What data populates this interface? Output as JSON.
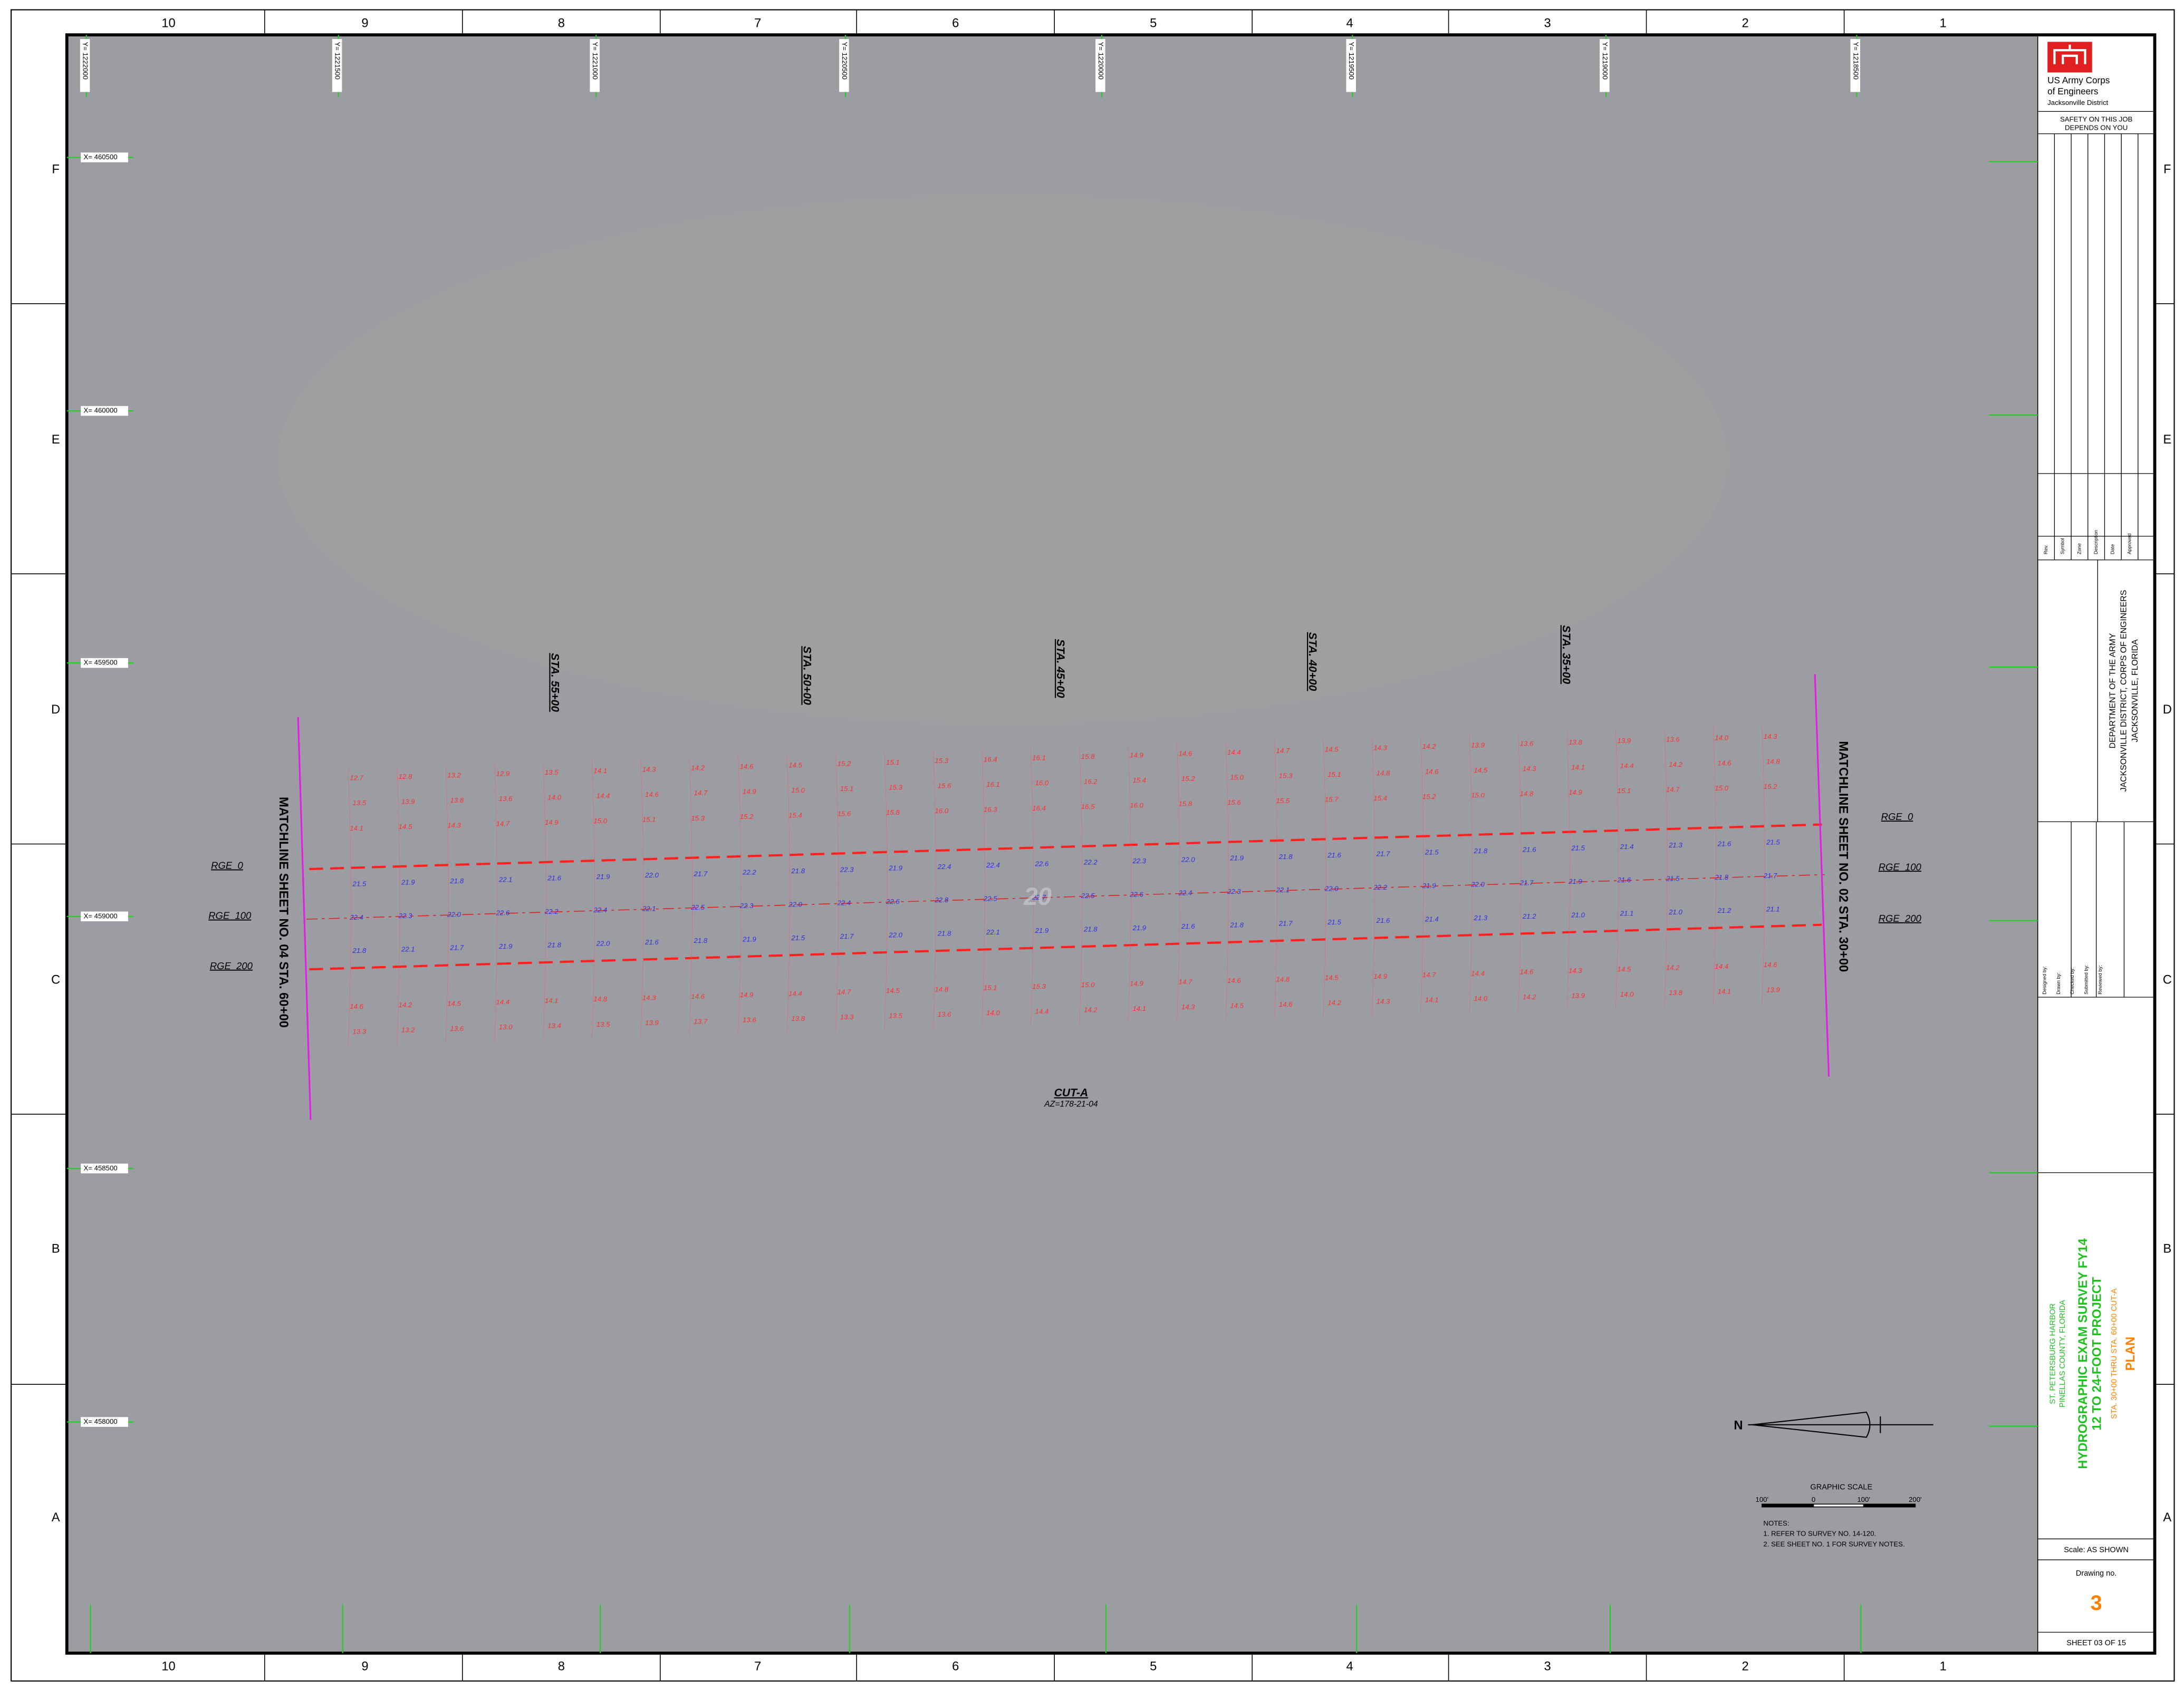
{
  "border": {
    "columns": [
      "10",
      "9",
      "8",
      "7",
      "6",
      "5",
      "4",
      "3",
      "2",
      "1"
    ],
    "rows": [
      "F",
      "E",
      "D",
      "C",
      "B",
      "A"
    ]
  },
  "grid": {
    "y_labels": [
      "Y= 1222000",
      "Y= 1221500",
      "Y= 1221000",
      "Y= 1220500",
      "Y= 1220000",
      "Y= 1219500",
      "Y= 1219000",
      "Y= 1218500"
    ],
    "x_labels": [
      "X= 460500",
      "X= 460000",
      "X= 459500",
      "X= 459000",
      "X= 458500",
      "X= 458000"
    ]
  },
  "map": {
    "stations": [
      "STA. 55+00",
      "STA. 50+00",
      "STA. 45+00",
      "STA. 40+00",
      "STA. 35+00"
    ],
    "matchline_left": "MATCHLINE SHEET NO. 04 STA. 60+00",
    "matchline_right": "MATCHLINE SHEET NO. 02 STA. 30+00",
    "ranges_left": [
      "RGE_0",
      "RGE_100",
      "RGE_200"
    ],
    "ranges_right": [
      "RGE_0",
      "RGE_100",
      "RGE_200"
    ],
    "cut": "CUT-A",
    "azimuth": "AZ=178-21-04",
    "watermark": "20",
    "north": "N",
    "scale_title": "GRAPHIC SCALE",
    "scale_ticks": [
      "100'",
      "0",
      "100'",
      "200'"
    ],
    "notes": [
      "NOTES:",
      "1. REFER TO SURVEY NO. 14-120.",
      "2. SEE SHEET NO. 1 FOR SURVEY NOTES."
    ],
    "soundings": [
      [
        "12.7",
        "13.5",
        "14.1",
        "21.5",
        "22.4",
        "21.8",
        "14.6",
        "13.3"
      ],
      [
        "12.8",
        "13.9",
        "14.5",
        "21.9",
        "22.3",
        "22.1",
        "14.2",
        "13.2"
      ],
      [
        "13.2",
        "13.8",
        "14.3",
        "21.8",
        "22.0",
        "21.7",
        "14.5",
        "13.6"
      ],
      [
        "12.9",
        "13.6",
        "14.7",
        "22.1",
        "22.6",
        "21.9",
        "14.4",
        "13.0"
      ],
      [
        "13.5",
        "14.0",
        "14.9",
        "21.6",
        "22.2",
        "21.8",
        "14.1",
        "13.4"
      ],
      [
        "14.1",
        "14.4",
        "15.0",
        "21.9",
        "22.4",
        "22.0",
        "14.8",
        "13.5"
      ],
      [
        "14.3",
        "14.6",
        "15.1",
        "22.0",
        "22.1",
        "21.6",
        "14.3",
        "13.9"
      ],
      [
        "14.2",
        "14.7",
        "15.3",
        "21.7",
        "22.5",
        "21.8",
        "14.6",
        "13.7"
      ],
      [
        "14.6",
        "14.9",
        "15.2",
        "22.2",
        "22.3",
        "21.9",
        "14.9",
        "13.6"
      ],
      [
        "14.5",
        "15.0",
        "15.4",
        "21.8",
        "22.0",
        "21.5",
        "14.4",
        "13.8"
      ],
      [
        "15.2",
        "15.1",
        "15.6",
        "22.3",
        "22.4",
        "21.7",
        "14.7",
        "13.3"
      ],
      [
        "15.1",
        "15.3",
        "15.8",
        "21.9",
        "22.6",
        "22.0",
        "14.5",
        "13.5"
      ],
      [
        "15.3",
        "15.6",
        "16.0",
        "22.4",
        "22.8",
        "21.8",
        "14.8",
        "13.6"
      ],
      [
        "16.4",
        "16.1",
        "16.3",
        "22.4",
        "22.5",
        "22.1",
        "15.1",
        "14.0"
      ],
      [
        "16.1",
        "16.0",
        "16.4",
        "22.6",
        "22.7",
        "21.9",
        "15.3",
        "14.4"
      ],
      [
        "15.8",
        "16.2",
        "16.5",
        "22.2",
        "22.5",
        "21.8",
        "15.0",
        "14.2"
      ],
      [
        "14.9",
        "15.4",
        "16.0",
        "22.3",
        "22.6",
        "21.9",
        "14.9",
        "14.1"
      ],
      [
        "14.6",
        "15.2",
        "15.8",
        "22.0",
        "22.4",
        "21.6",
        "14.7",
        "14.3"
      ],
      [
        "14.4",
        "15.0",
        "15.6",
        "21.9",
        "22.3",
        "21.8",
        "14.6",
        "14.5"
      ],
      [
        "14.7",
        "15.3",
        "15.5",
        "21.8",
        "22.1",
        "21.7",
        "14.8",
        "14.6"
      ],
      [
        "14.5",
        "15.1",
        "15.7",
        "21.6",
        "22.0",
        "21.5",
        "14.5",
        "14.2"
      ],
      [
        "14.3",
        "14.8",
        "15.4",
        "21.7",
        "22.2",
        "21.6",
        "14.9",
        "14.3"
      ],
      [
        "14.2",
        "14.6",
        "15.2",
        "21.5",
        "21.9",
        "21.4",
        "14.7",
        "14.1"
      ],
      [
        "13.9",
        "14.5",
        "15.0",
        "21.8",
        "22.0",
        "21.3",
        "14.4",
        "14.0"
      ],
      [
        "13.6",
        "14.3",
        "14.8",
        "21.6",
        "21.7",
        "21.2",
        "14.6",
        "14.2"
      ],
      [
        "13.8",
        "14.1",
        "14.9",
        "21.5",
        "21.9",
        "21.0",
        "14.3",
        "13.9"
      ],
      [
        "13.9",
        "14.4",
        "15.1",
        "21.4",
        "21.6",
        "21.1",
        "14.5",
        "14.0"
      ],
      [
        "13.6",
        "14.2",
        "14.7",
        "21.3",
        "21.5",
        "21.0",
        "14.2",
        "13.8"
      ],
      [
        "14.0",
        "14.6",
        "15.0",
        "21.6",
        "21.8",
        "21.2",
        "14.4",
        "14.1"
      ],
      [
        "14.3",
        "14.8",
        "15.2",
        "21.5",
        "21.7",
        "21.1",
        "14.6",
        "13.9"
      ]
    ]
  },
  "title_block": {
    "agency": [
      "US Army Corps",
      "of Engineers",
      "Jacksonville District"
    ],
    "safety": [
      "SAFETY ON THIS JOB",
      "DEPENDS ON YOU"
    ],
    "revision_headers": [
      "Rev.",
      "Symbol",
      "Zone",
      "Description",
      "Date",
      "Approved"
    ],
    "department": [
      "DEPARTMENT OF THE ARMY",
      "JACKSONVILLE DISTRICT, CORPS OF ENGINEERS",
      "JACKSONVILLE, FLORIDA"
    ],
    "fields": [
      "Designed by:",
      "Drawn by:",
      "Checked by:",
      "Submitted by:",
      "Reviewed by:"
    ],
    "location": [
      "ST. PETERSBURG HARBOR",
      "PINELLAS COUNTY, FLORIDA"
    ],
    "title": [
      "HYDROGRAPHIC EXAM SURVEY FY14",
      "12 TO 24-FOOT PROJECT"
    ],
    "subtitle": "STA. 30+00 THRU STA. 60+00 CUT-A",
    "plan": "PLAN",
    "scale": "Scale:  AS SHOWN",
    "drawing_label": "Drawing no.",
    "drawing_no": "3",
    "sheet": "SHEET  03  OF  15"
  }
}
